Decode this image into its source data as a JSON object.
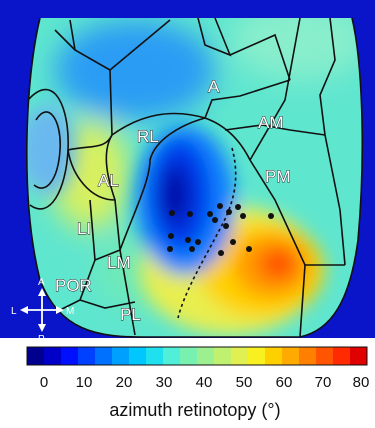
{
  "map": {
    "area_labels": [
      "A",
      "AM",
      "RL",
      "AL",
      "PM",
      "LI",
      "LM",
      "POR",
      "PL"
    ],
    "background_color": "#0a14c8",
    "boundary_color": "#111111",
    "marker_color": "#111111"
  },
  "compass": {
    "a": "A",
    "p": "P",
    "l": "L",
    "m": "M"
  },
  "colorbar": {
    "ticks": [
      "0",
      "10",
      "20",
      "30",
      "40",
      "50",
      "60",
      "70",
      "80"
    ],
    "title": "azimuth retinotopy (°)",
    "colors": [
      "#00008f",
      "#0000c8",
      "#0010ff",
      "#0040ff",
      "#0070ff",
      "#00a0ff",
      "#00c8ff",
      "#20e0f0",
      "#50f0d8",
      "#78f0b0",
      "#9cf090",
      "#bff070",
      "#dff050",
      "#f8f020",
      "#ffd000",
      "#ffaa00",
      "#ff8000",
      "#ff5500",
      "#ff2a00",
      "#e00000"
    ]
  }
}
